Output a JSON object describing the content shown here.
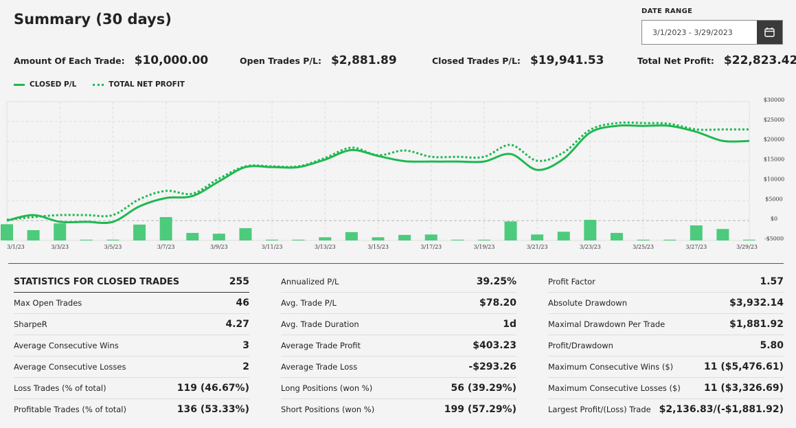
{
  "header": {
    "title": "Summary (30 days)",
    "date_range_label": "DATE RANGE",
    "date_range": "3/1/2023 - 3/29/2023"
  },
  "summary": [
    {
      "label": "Amount Of Each Trade:",
      "value": "$10,000.00"
    },
    {
      "label": "Open Trades P/L:",
      "value": "$2,881.89"
    },
    {
      "label": "Closed Trades P/L:",
      "value": "$19,941.53"
    },
    {
      "label": "Total Net Profit:",
      "value": "$22,823.42"
    }
  ],
  "chart_data": {
    "type": "line",
    "categories": [
      "3/1/23",
      null,
      "3/3/23",
      null,
      "3/5/23",
      null,
      "3/7/23",
      null,
      "3/9/23",
      null,
      "3/11/23",
      null,
      "3/13/23",
      null,
      "3/15/23",
      null,
      "3/17/23",
      null,
      "3/19/23",
      null,
      "3/21/23",
      null,
      "3/23/23",
      null,
      "3/25/23",
      null,
      "3/27/23",
      null,
      "3/29/23"
    ],
    "series": [
      {
        "name": "CLOSED P/L",
        "color": "#1fb850",
        "style": "solid",
        "values": [
          0,
          1400,
          -300,
          -300,
          -300,
          3600,
          5700,
          6200,
          9900,
          13500,
          13500,
          13500,
          15400,
          17800,
          16300,
          15000,
          14900,
          14900,
          14900,
          16800,
          12800,
          15600,
          22200,
          23900,
          23900,
          23900,
          22400,
          20100,
          20100
        ]
      },
      {
        "name": "TOTAL NET PROFIT",
        "color": "#1fb850",
        "style": "dotted",
        "values": [
          200,
          900,
          1400,
          1400,
          1400,
          5400,
          7500,
          6800,
          10600,
          13700,
          13700,
          13700,
          15800,
          18400,
          16500,
          17700,
          16100,
          16100,
          16100,
          19100,
          15100,
          17200,
          22900,
          24600,
          24600,
          24400,
          23000,
          23000,
          23000
        ]
      },
      {
        "type": "bar",
        "color": "#4ccb7c",
        "values": [
          -900,
          -2400,
          -700,
          -4800,
          -4800,
          -1000,
          900,
          -3100,
          -3300,
          -1900,
          -4800,
          -4800,
          -4200,
          -2900,
          -4200,
          -3600,
          -3500,
          -4800,
          -4800,
          -200,
          -3500,
          -2800,
          200,
          -3100,
          -4800,
          -4800,
          -1200,
          -2100,
          -4800
        ]
      }
    ],
    "ylim": [
      -5000,
      30000
    ],
    "yticks": [
      {
        "value": -5000,
        "label": "-$5000"
      },
      {
        "value": 0,
        "label": "$0"
      },
      {
        "value": 5000,
        "label": "$5000"
      },
      {
        "value": 10000,
        "label": "$10000"
      },
      {
        "value": 15000,
        "label": "$15000"
      },
      {
        "value": 20000,
        "label": "$20000"
      },
      {
        "value": 25000,
        "label": "$25000"
      },
      {
        "value": 30000,
        "label": "$30000"
      }
    ],
    "grid": true,
    "legend": "top-left"
  },
  "statistics": {
    "columns": [
      [
        {
          "label": "STATISTICS FOR CLOSED TRADES",
          "value": "255"
        },
        {
          "label": "Max Open Trades",
          "value": "46"
        },
        {
          "label": "SharpeR",
          "value": "4.27"
        },
        {
          "label": "Average Consecutive Wins",
          "value": "3"
        },
        {
          "label": "Average Consecutive Losses",
          "value": "2"
        },
        {
          "label": "Loss Trades (% of total)",
          "value": "119 (46.67%)"
        },
        {
          "label": "Profitable Trades (% of total)",
          "value": "136 (53.33%)"
        }
      ],
      [
        {
          "label": "Annualized P/L",
          "value": "39.25%"
        },
        {
          "label": "Avg. Trade P/L",
          "value": "$78.20"
        },
        {
          "label": "Avg. Trade Duration",
          "value": "1d"
        },
        {
          "label": "Average Trade Profit",
          "value": "$403.23"
        },
        {
          "label": "Average Trade Loss",
          "value": "-$293.26"
        },
        {
          "label": "Long Positions (won %)",
          "value": "56 (39.29%)"
        },
        {
          "label": "Short Positions (won %)",
          "value": "199 (57.29%)"
        }
      ],
      [
        {
          "label": "Profit Factor",
          "value": "1.57"
        },
        {
          "label": "Absolute Drawdown",
          "value": "$3,932.14"
        },
        {
          "label": "Maximal Drawdown Per Trade",
          "value": "$1,881.92"
        },
        {
          "label": "Profit/Drawdown",
          "value": "5.80"
        },
        {
          "label": "Maximum Consecutive Wins ($)",
          "value": "11 ($5,476.61)"
        },
        {
          "label": "Maximum Consecutive Losses ($)",
          "value": "11 ($3,326.69)"
        },
        {
          "label": "Largest Profit/(Loss) Trade",
          "value": "$2,136.83/(-$1,881.92)"
        }
      ]
    ]
  }
}
